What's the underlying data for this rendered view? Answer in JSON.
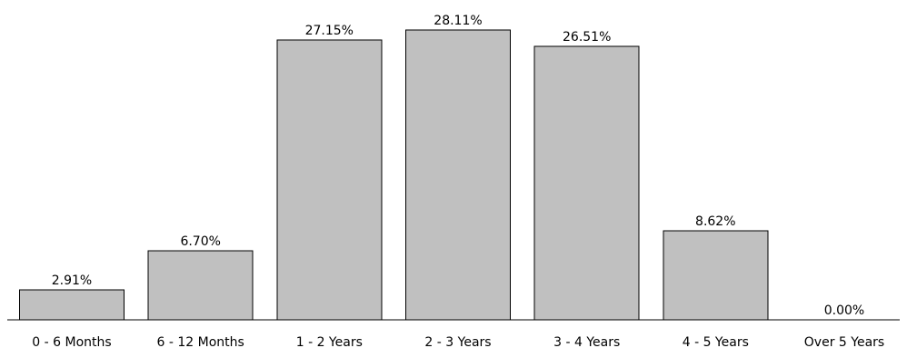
{
  "chart_data": {
    "type": "bar",
    "categories": [
      "0 - 6 Months",
      "6 - 12 Months",
      "1 - 2 Years",
      "2 - 3 Years",
      "3 - 4 Years",
      "4 - 5 Years",
      "Over 5 Years"
    ],
    "values": [
      2.91,
      6.7,
      27.15,
      28.11,
      26.51,
      8.62,
      0.0
    ],
    "data_labels": [
      "2.91%",
      "6.70%",
      "27.15%",
      "28.11%",
      "26.51%",
      "8.62%",
      "0.00%"
    ],
    "title": "",
    "xlabel": "",
    "ylabel": "",
    "ylim": [
      0,
      30
    ],
    "grid": false,
    "legend": "none",
    "bar_color": "#c0c0c0",
    "edge_color": "#000000"
  }
}
